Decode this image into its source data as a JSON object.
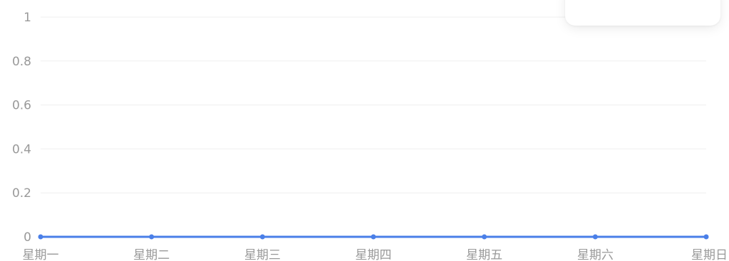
{
  "colors": {
    "series": "#4a7fe8",
    "grid": "#efefef",
    "tick_text": "#999999",
    "background": "#ffffff"
  },
  "chart_data": {
    "type": "line",
    "categories": [
      "星期一",
      "星期二",
      "星期三",
      "星期四",
      "星期五",
      "星期六",
      "星期日"
    ],
    "series": [
      {
        "values": [
          0,
          0,
          0,
          0,
          0,
          0,
          0
        ]
      }
    ],
    "y_ticks": [
      "0",
      "0.2",
      "0.4",
      "0.6",
      "0.8",
      "1"
    ],
    "ylim": [
      0,
      1
    ],
    "grid": true,
    "legend": "none"
  }
}
